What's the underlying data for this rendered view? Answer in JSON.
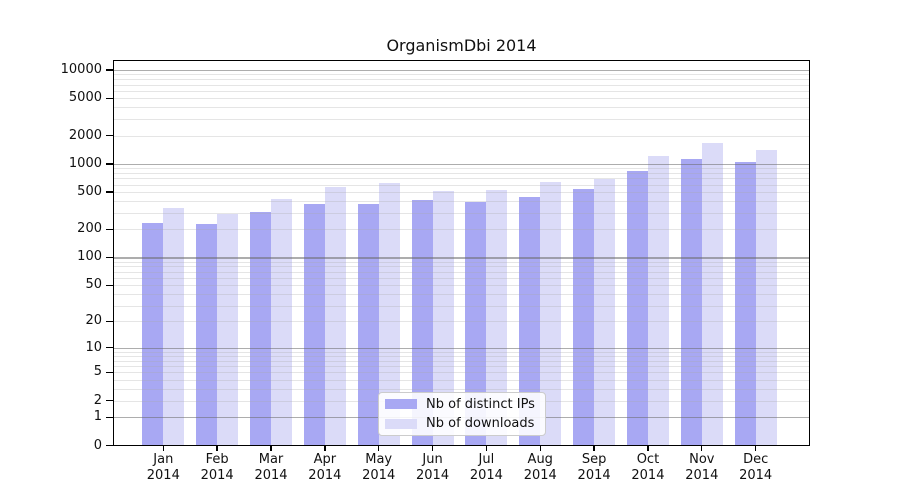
{
  "chart_data": {
    "type": "bar",
    "title": "OrganismDbi 2014",
    "categories": [
      "Jan",
      "Feb",
      "Mar",
      "Apr",
      "May",
      "Jun",
      "Jul",
      "Aug",
      "Sep",
      "Oct",
      "Nov",
      "Dec"
    ],
    "year_label": "2014",
    "series": [
      {
        "name": "Nb of distinct IPs",
        "color": "#a8a8f3",
        "values": [
          235,
          228,
          308,
          370,
          376,
          412,
          391,
          447,
          540,
          840,
          1130,
          1055
        ]
      },
      {
        "name": "Nb of downloads",
        "color": "#dbdbf8",
        "values": [
          340,
          291,
          418,
          572,
          621,
          517,
          531,
          636,
          691,
          1212,
          1659,
          1390
        ]
      }
    ],
    "y_axis": {
      "scale": "log10(value+1)",
      "tick_values": [
        10000,
        5000,
        2000,
        1000,
        500,
        200,
        100,
        50,
        20,
        10,
        5,
        2,
        1,
        0
      ],
      "tick_labels": [
        "10000",
        "5000",
        "2000",
        "1000",
        "500",
        "200",
        "100",
        "50",
        "20",
        "10",
        "5",
        "2",
        "1",
        "0"
      ],
      "major_gridlines": [
        1,
        10,
        100,
        1000,
        10000
      ],
      "ylim": [
        0,
        14000
      ]
    },
    "x_axis": {
      "label_lines": 2
    },
    "legend": {
      "position": "lower center",
      "entries": [
        "Nb of distinct IPs",
        "Nb of downloads"
      ]
    },
    "grid": true
  }
}
